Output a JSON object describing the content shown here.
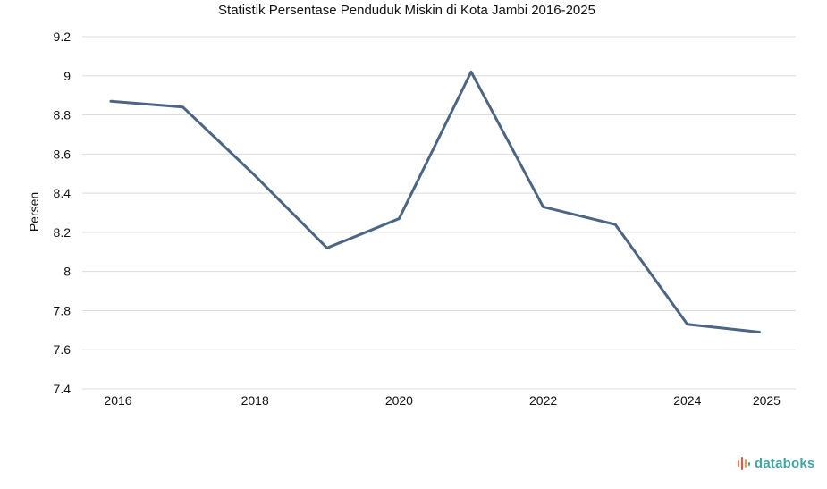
{
  "chart_data": {
    "type": "line",
    "title": "Statistik Persentase Penduduk Miskin di Kota Jambi 2016-2025",
    "ylabel": "Persen",
    "xlabel": "",
    "x": [
      2016,
      2017,
      2018,
      2019,
      2020,
      2021,
      2022,
      2023,
      2024,
      2025
    ],
    "series": [
      {
        "values": [
          8.87,
          8.84,
          8.49,
          8.12,
          8.27,
          9.02,
          8.33,
          8.24,
          7.73,
          7.69
        ]
      }
    ],
    "ylim": [
      7.4,
      9.2
    ],
    "yticks": [
      "7.4",
      "7.6",
      "7.8",
      "8",
      "8.2",
      "8.4",
      "8.6",
      "8.8",
      "9",
      "9.2"
    ],
    "xticks": [
      "2016",
      "2018",
      "2020",
      "2022",
      "2024",
      "2025"
    ],
    "grid": true,
    "colors": {
      "line": "#4d6585",
      "grid": "#dcdcdc"
    }
  },
  "brand": {
    "name": "databoks",
    "icon": "databoks-logo-icon",
    "color": "#3fa6a0"
  }
}
